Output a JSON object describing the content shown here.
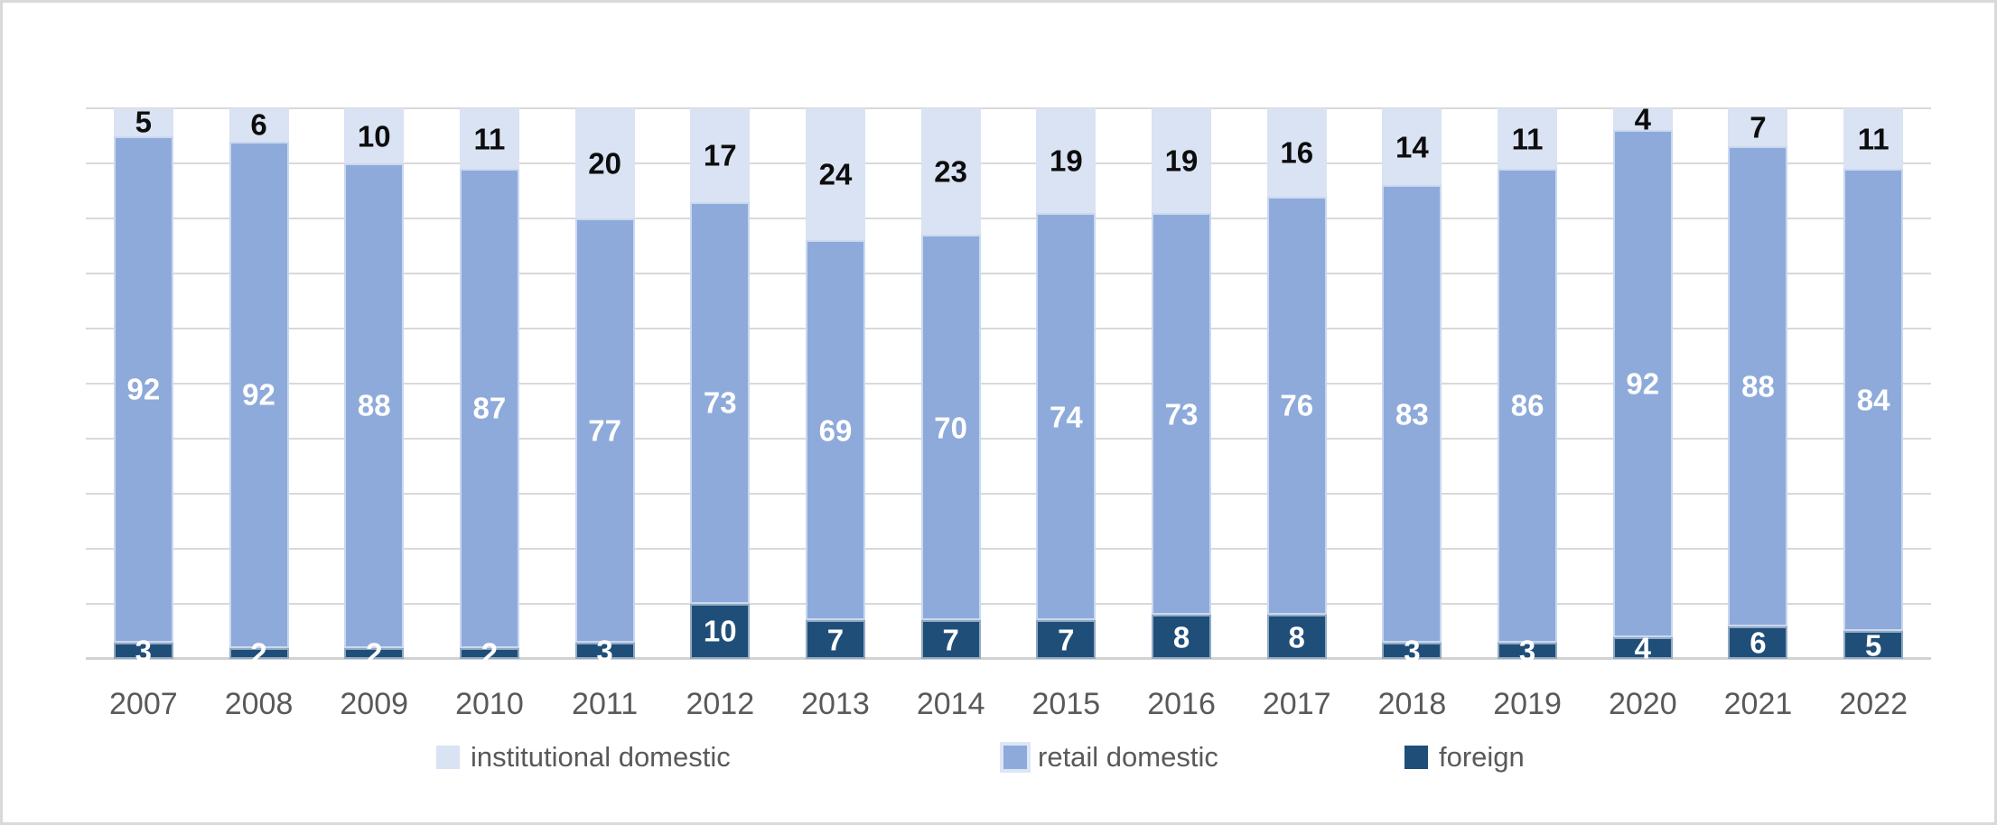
{
  "chart_data": {
    "type": "bar",
    "stacked": "percent",
    "title": "",
    "xlabel": "",
    "ylabel": "",
    "ylim": [
      0,
      100
    ],
    "gridline_step": 10,
    "grid": true,
    "legend_position": "bottom",
    "categories": [
      "2007",
      "2008",
      "2009",
      "2010",
      "2011",
      "2012",
      "2013",
      "2014",
      "2015",
      "2016",
      "2017",
      "2018",
      "2019",
      "2020",
      "2021",
      "2022"
    ],
    "series": [
      {
        "name": "institutional domestic",
        "color": "#dae3f3",
        "label_color": "#0d0d0d",
        "edge": "",
        "swatch_border": "",
        "values": [
          5,
          6,
          10,
          11,
          20,
          17,
          24,
          23,
          19,
          19,
          16,
          14,
          11,
          4,
          7,
          11
        ]
      },
      {
        "name": "retail domestic",
        "color": "#8eaadb",
        "label_color": "#ffffff",
        "edge": "rgba(222,231,245,0.75)",
        "swatch_border": "#dde6f5",
        "values": [
          92,
          92,
          88,
          87,
          77,
          73,
          69,
          70,
          74,
          73,
          76,
          83,
          86,
          92,
          88,
          84
        ]
      },
      {
        "name": "foreign",
        "color": "#1f4e79",
        "label_color": "#ffffff",
        "edge": "rgba(222,231,245,0.6)",
        "swatch_border": "",
        "values": [
          3,
          2,
          2,
          2,
          3,
          10,
          7,
          7,
          7,
          8,
          8,
          3,
          3,
          4,
          6,
          5
        ]
      }
    ],
    "colors": {
      "gridline": "#d9d9d9",
      "baseline": "#d2d2d2",
      "axis_text": "#595959",
      "frame_border": "#d9d9d9",
      "background": "#ffffff"
    }
  }
}
